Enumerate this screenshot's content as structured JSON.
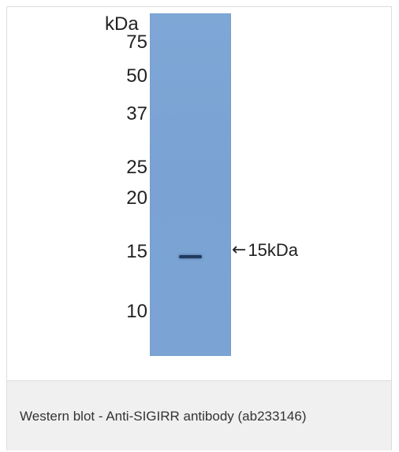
{
  "blot": {
    "unit_label": "kDa",
    "markers": [
      "75",
      "50",
      "37",
      "25",
      "20",
      "15",
      "10"
    ],
    "band_label": "15kDa",
    "band_icon": "left-arrow-icon"
  },
  "caption": {
    "text": "Western blot - Anti-SIGIRR antibody (ab233146)"
  },
  "colors": {
    "lane": "#7aa3d3",
    "band": "#203a5f",
    "caption_bg": "#f0f0f0"
  }
}
